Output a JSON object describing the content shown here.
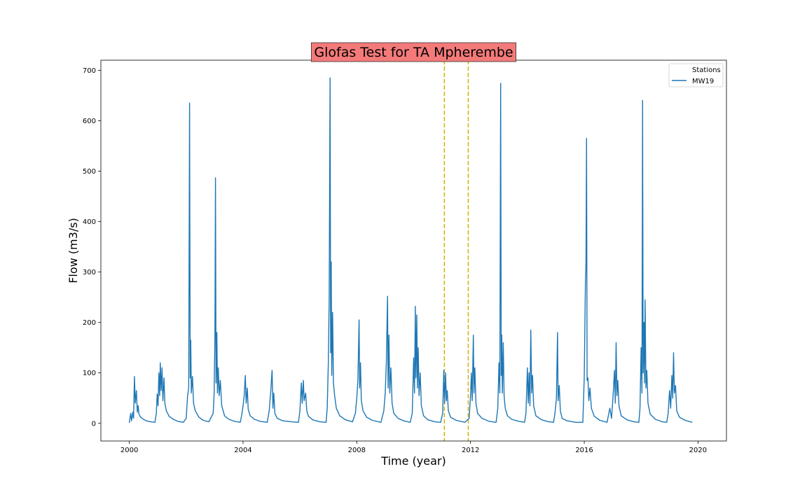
{
  "chart_data": {
    "type": "line",
    "title": "Glofas Test for TA Mpherembe",
    "xlabel": "Time (year)",
    "ylabel": "Flow (m3/s)",
    "xlim": [
      1999.0,
      2021.0
    ],
    "ylim": [
      -35,
      720
    ],
    "x_ticks": [
      2000,
      2004,
      2008,
      2012,
      2016,
      2020
    ],
    "y_ticks": [
      0,
      100,
      200,
      300,
      400,
      500,
      600,
      700
    ],
    "grid": false,
    "legend": {
      "title": "Stations",
      "placement": "top-right"
    },
    "vlines": [
      {
        "x": 2011.08,
        "color": "#d4b000",
        "style": "dashed"
      },
      {
        "x": 2011.92,
        "color": "#d4b000",
        "style": "dashed"
      }
    ],
    "title_box_color": "#f47a7a",
    "series": [
      {
        "name": "MW19",
        "color": "#1f77b4",
        "points": [
          [
            2000.0,
            1
          ],
          [
            2000.05,
            20
          ],
          [
            2000.08,
            5
          ],
          [
            2000.12,
            22
          ],
          [
            2000.15,
            10
          ],
          [
            2000.18,
            93
          ],
          [
            2000.21,
            40
          ],
          [
            2000.25,
            65
          ],
          [
            2000.28,
            22
          ],
          [
            2000.31,
            35
          ],
          [
            2000.34,
            18
          ],
          [
            2000.4,
            12
          ],
          [
            2000.5,
            8
          ],
          [
            2000.6,
            5
          ],
          [
            2000.75,
            3
          ],
          [
            2000.9,
            2
          ],
          [
            2000.95,
            20
          ],
          [
            2000.98,
            58
          ],
          [
            2001.01,
            35
          ],
          [
            2001.04,
            100
          ],
          [
            2001.07,
            55
          ],
          [
            2001.09,
            120
          ],
          [
            2001.12,
            65
          ],
          [
            2001.15,
            110
          ],
          [
            2001.18,
            45
          ],
          [
            2001.22,
            90
          ],
          [
            2001.25,
            40
          ],
          [
            2001.3,
            25
          ],
          [
            2001.4,
            14
          ],
          [
            2001.55,
            8
          ],
          [
            2001.7,
            4
          ],
          [
            2001.9,
            2
          ],
          [
            2002.0,
            10
          ],
          [
            2002.05,
            55
          ],
          [
            2002.09,
            70
          ],
          [
            2002.12,
            635
          ],
          [
            2002.14,
            90
          ],
          [
            2002.16,
            165
          ],
          [
            2002.18,
            60
          ],
          [
            2002.22,
            93
          ],
          [
            2002.26,
            40
          ],
          [
            2002.32,
            25
          ],
          [
            2002.45,
            12
          ],
          [
            2002.6,
            6
          ],
          [
            2002.8,
            3
          ],
          [
            2002.95,
            20
          ],
          [
            2002.98,
            55
          ],
          [
            2003.01,
            170
          ],
          [
            2003.03,
            487
          ],
          [
            2003.05,
            80
          ],
          [
            2003.08,
            180
          ],
          [
            2003.1,
            60
          ],
          [
            2003.13,
            110
          ],
          [
            2003.16,
            55
          ],
          [
            2003.2,
            85
          ],
          [
            2003.25,
            35
          ],
          [
            2003.35,
            15
          ],
          [
            2003.5,
            8
          ],
          [
            2003.7,
            4
          ],
          [
            2003.9,
            2
          ],
          [
            2003.95,
            15
          ],
          [
            2004.0,
            35
          ],
          [
            2004.04,
            55
          ],
          [
            2004.08,
            95
          ],
          [
            2004.11,
            40
          ],
          [
            2004.15,
            70
          ],
          [
            2004.18,
            28
          ],
          [
            2004.25,
            15
          ],
          [
            2004.4,
            8
          ],
          [
            2004.6,
            4
          ],
          [
            2004.85,
            2
          ],
          [
            2004.92,
            25
          ],
          [
            2004.97,
            60
          ],
          [
            2005.02,
            105
          ],
          [
            2005.05,
            30
          ],
          [
            2005.08,
            60
          ],
          [
            2005.12,
            20
          ],
          [
            2005.2,
            10
          ],
          [
            2005.4,
            5
          ],
          [
            2005.7,
            3
          ],
          [
            2005.95,
            2
          ],
          [
            2006.0,
            25
          ],
          [
            2006.05,
            80
          ],
          [
            2006.08,
            40
          ],
          [
            2006.12,
            85
          ],
          [
            2006.15,
            45
          ],
          [
            2006.2,
            60
          ],
          [
            2006.24,
            25
          ],
          [
            2006.3,
            14
          ],
          [
            2006.45,
            7
          ],
          [
            2006.7,
            3
          ],
          [
            2006.92,
            2
          ],
          [
            2006.96,
            30
          ],
          [
            2007.0,
            120
          ],
          [
            2007.03,
            245
          ],
          [
            2007.06,
            685
          ],
          [
            2007.08,
            140
          ],
          [
            2007.1,
            320
          ],
          [
            2007.12,
            95
          ],
          [
            2007.15,
            220
          ],
          [
            2007.18,
            80
          ],
          [
            2007.22,
            55
          ],
          [
            2007.28,
            30
          ],
          [
            2007.4,
            15
          ],
          [
            2007.6,
            7
          ],
          [
            2007.85,
            3
          ],
          [
            2007.95,
            20
          ],
          [
            2008.0,
            50
          ],
          [
            2008.04,
            85
          ],
          [
            2008.08,
            205
          ],
          [
            2008.1,
            70
          ],
          [
            2008.13,
            120
          ],
          [
            2008.16,
            45
          ],
          [
            2008.22,
            25
          ],
          [
            2008.35,
            12
          ],
          [
            2008.55,
            6
          ],
          [
            2008.85,
            2
          ],
          [
            2008.95,
            25
          ],
          [
            2009.0,
            60
          ],
          [
            2009.04,
            120
          ],
          [
            2009.08,
            252
          ],
          [
            2009.1,
            70
          ],
          [
            2009.13,
            175
          ],
          [
            2009.16,
            60
          ],
          [
            2009.2,
            110
          ],
          [
            2009.24,
            40
          ],
          [
            2009.3,
            20
          ],
          [
            2009.45,
            10
          ],
          [
            2009.65,
            5
          ],
          [
            2009.88,
            2
          ],
          [
            2009.95,
            20
          ],
          [
            2010.0,
            130
          ],
          [
            2010.03,
            60
          ],
          [
            2010.06,
            232
          ],
          [
            2010.08,
            90
          ],
          [
            2010.11,
            215
          ],
          [
            2010.13,
            70
          ],
          [
            2010.16,
            150
          ],
          [
            2010.19,
            55
          ],
          [
            2010.23,
            100
          ],
          [
            2010.27,
            35
          ],
          [
            2010.35,
            15
          ],
          [
            2010.5,
            7
          ],
          [
            2010.75,
            3
          ],
          [
            2010.95,
            2
          ],
          [
            2011.02,
            20
          ],
          [
            2011.06,
            105
          ],
          [
            2011.09,
            40
          ],
          [
            2011.12,
            100
          ],
          [
            2011.15,
            45
          ],
          [
            2011.18,
            65
          ],
          [
            2011.22,
            25
          ],
          [
            2011.3,
            12
          ],
          [
            2011.5,
            6
          ],
          [
            2011.8,
            2
          ],
          [
            2011.95,
            10
          ],
          [
            2012.0,
            55
          ],
          [
            2012.03,
            100
          ],
          [
            2012.06,
            45
          ],
          [
            2012.1,
            175
          ],
          [
            2012.12,
            60
          ],
          [
            2012.15,
            110
          ],
          [
            2012.19,
            40
          ],
          [
            2012.25,
            20
          ],
          [
            2012.4,
            10
          ],
          [
            2012.65,
            4
          ],
          [
            2012.9,
            2
          ],
          [
            2012.96,
            30
          ],
          [
            2013.0,
            120
          ],
          [
            2013.03,
            60
          ],
          [
            2013.06,
            674
          ],
          [
            2013.08,
            95
          ],
          [
            2013.1,
            175
          ],
          [
            2013.12,
            60
          ],
          [
            2013.15,
            160
          ],
          [
            2013.18,
            55
          ],
          [
            2013.22,
            30
          ],
          [
            2013.3,
            15
          ],
          [
            2013.45,
            8
          ],
          [
            2013.7,
            4
          ],
          [
            2013.9,
            2
          ],
          [
            2013.95,
            20
          ],
          [
            2014.0,
            110
          ],
          [
            2014.03,
            40
          ],
          [
            2014.06,
            100
          ],
          [
            2014.09,
            35
          ],
          [
            2014.12,
            185
          ],
          [
            2014.15,
            60
          ],
          [
            2014.18,
            95
          ],
          [
            2014.22,
            35
          ],
          [
            2014.3,
            15
          ],
          [
            2014.5,
            7
          ],
          [
            2014.75,
            3
          ],
          [
            2014.92,
            2
          ],
          [
            2014.97,
            20
          ],
          [
            2015.02,
            50
          ],
          [
            2015.06,
            180
          ],
          [
            2015.08,
            45
          ],
          [
            2015.12,
            75
          ],
          [
            2015.16,
            25
          ],
          [
            2015.22,
            10
          ],
          [
            2015.4,
            5
          ],
          [
            2015.7,
            2
          ],
          [
            2015.95,
            2
          ],
          [
            2016.0,
            90
          ],
          [
            2016.04,
            280
          ],
          [
            2016.06,
            318
          ],
          [
            2016.08,
            565
          ],
          [
            2016.1,
            85
          ],
          [
            2016.13,
            90
          ],
          [
            2016.16,
            45
          ],
          [
            2016.2,
            70
          ],
          [
            2016.25,
            30
          ],
          [
            2016.35,
            14
          ],
          [
            2016.55,
            6
          ],
          [
            2016.8,
            2
          ],
          [
            2016.9,
            30
          ],
          [
            2016.96,
            10
          ],
          [
            2017.02,
            60
          ],
          [
            2017.06,
            105
          ],
          [
            2017.09,
            40
          ],
          [
            2017.12,
            160
          ],
          [
            2017.15,
            55
          ],
          [
            2017.18,
            85
          ],
          [
            2017.22,
            35
          ],
          [
            2017.3,
            15
          ],
          [
            2017.5,
            7
          ],
          [
            2017.75,
            3
          ],
          [
            2017.92,
            2
          ],
          [
            2017.96,
            30
          ],
          [
            2018.0,
            150
          ],
          [
            2018.03,
            60
          ],
          [
            2018.05,
            640
          ],
          [
            2018.07,
            100
          ],
          [
            2018.1,
            200
          ],
          [
            2018.12,
            80
          ],
          [
            2018.14,
            245
          ],
          [
            2018.17,
            70
          ],
          [
            2018.2,
            105
          ],
          [
            2018.24,
            40
          ],
          [
            2018.32,
            18
          ],
          [
            2018.5,
            8
          ],
          [
            2018.75,
            3
          ],
          [
            2018.9,
            2
          ],
          [
            2018.95,
            20
          ],
          [
            2019.0,
            65
          ],
          [
            2019.04,
            30
          ],
          [
            2019.08,
            95
          ],
          [
            2019.11,
            50
          ],
          [
            2019.14,
            140
          ],
          [
            2019.17,
            60
          ],
          [
            2019.21,
            75
          ],
          [
            2019.25,
            25
          ],
          [
            2019.35,
            12
          ],
          [
            2019.55,
            6
          ],
          [
            2019.8,
            2
          ]
        ]
      }
    ]
  }
}
